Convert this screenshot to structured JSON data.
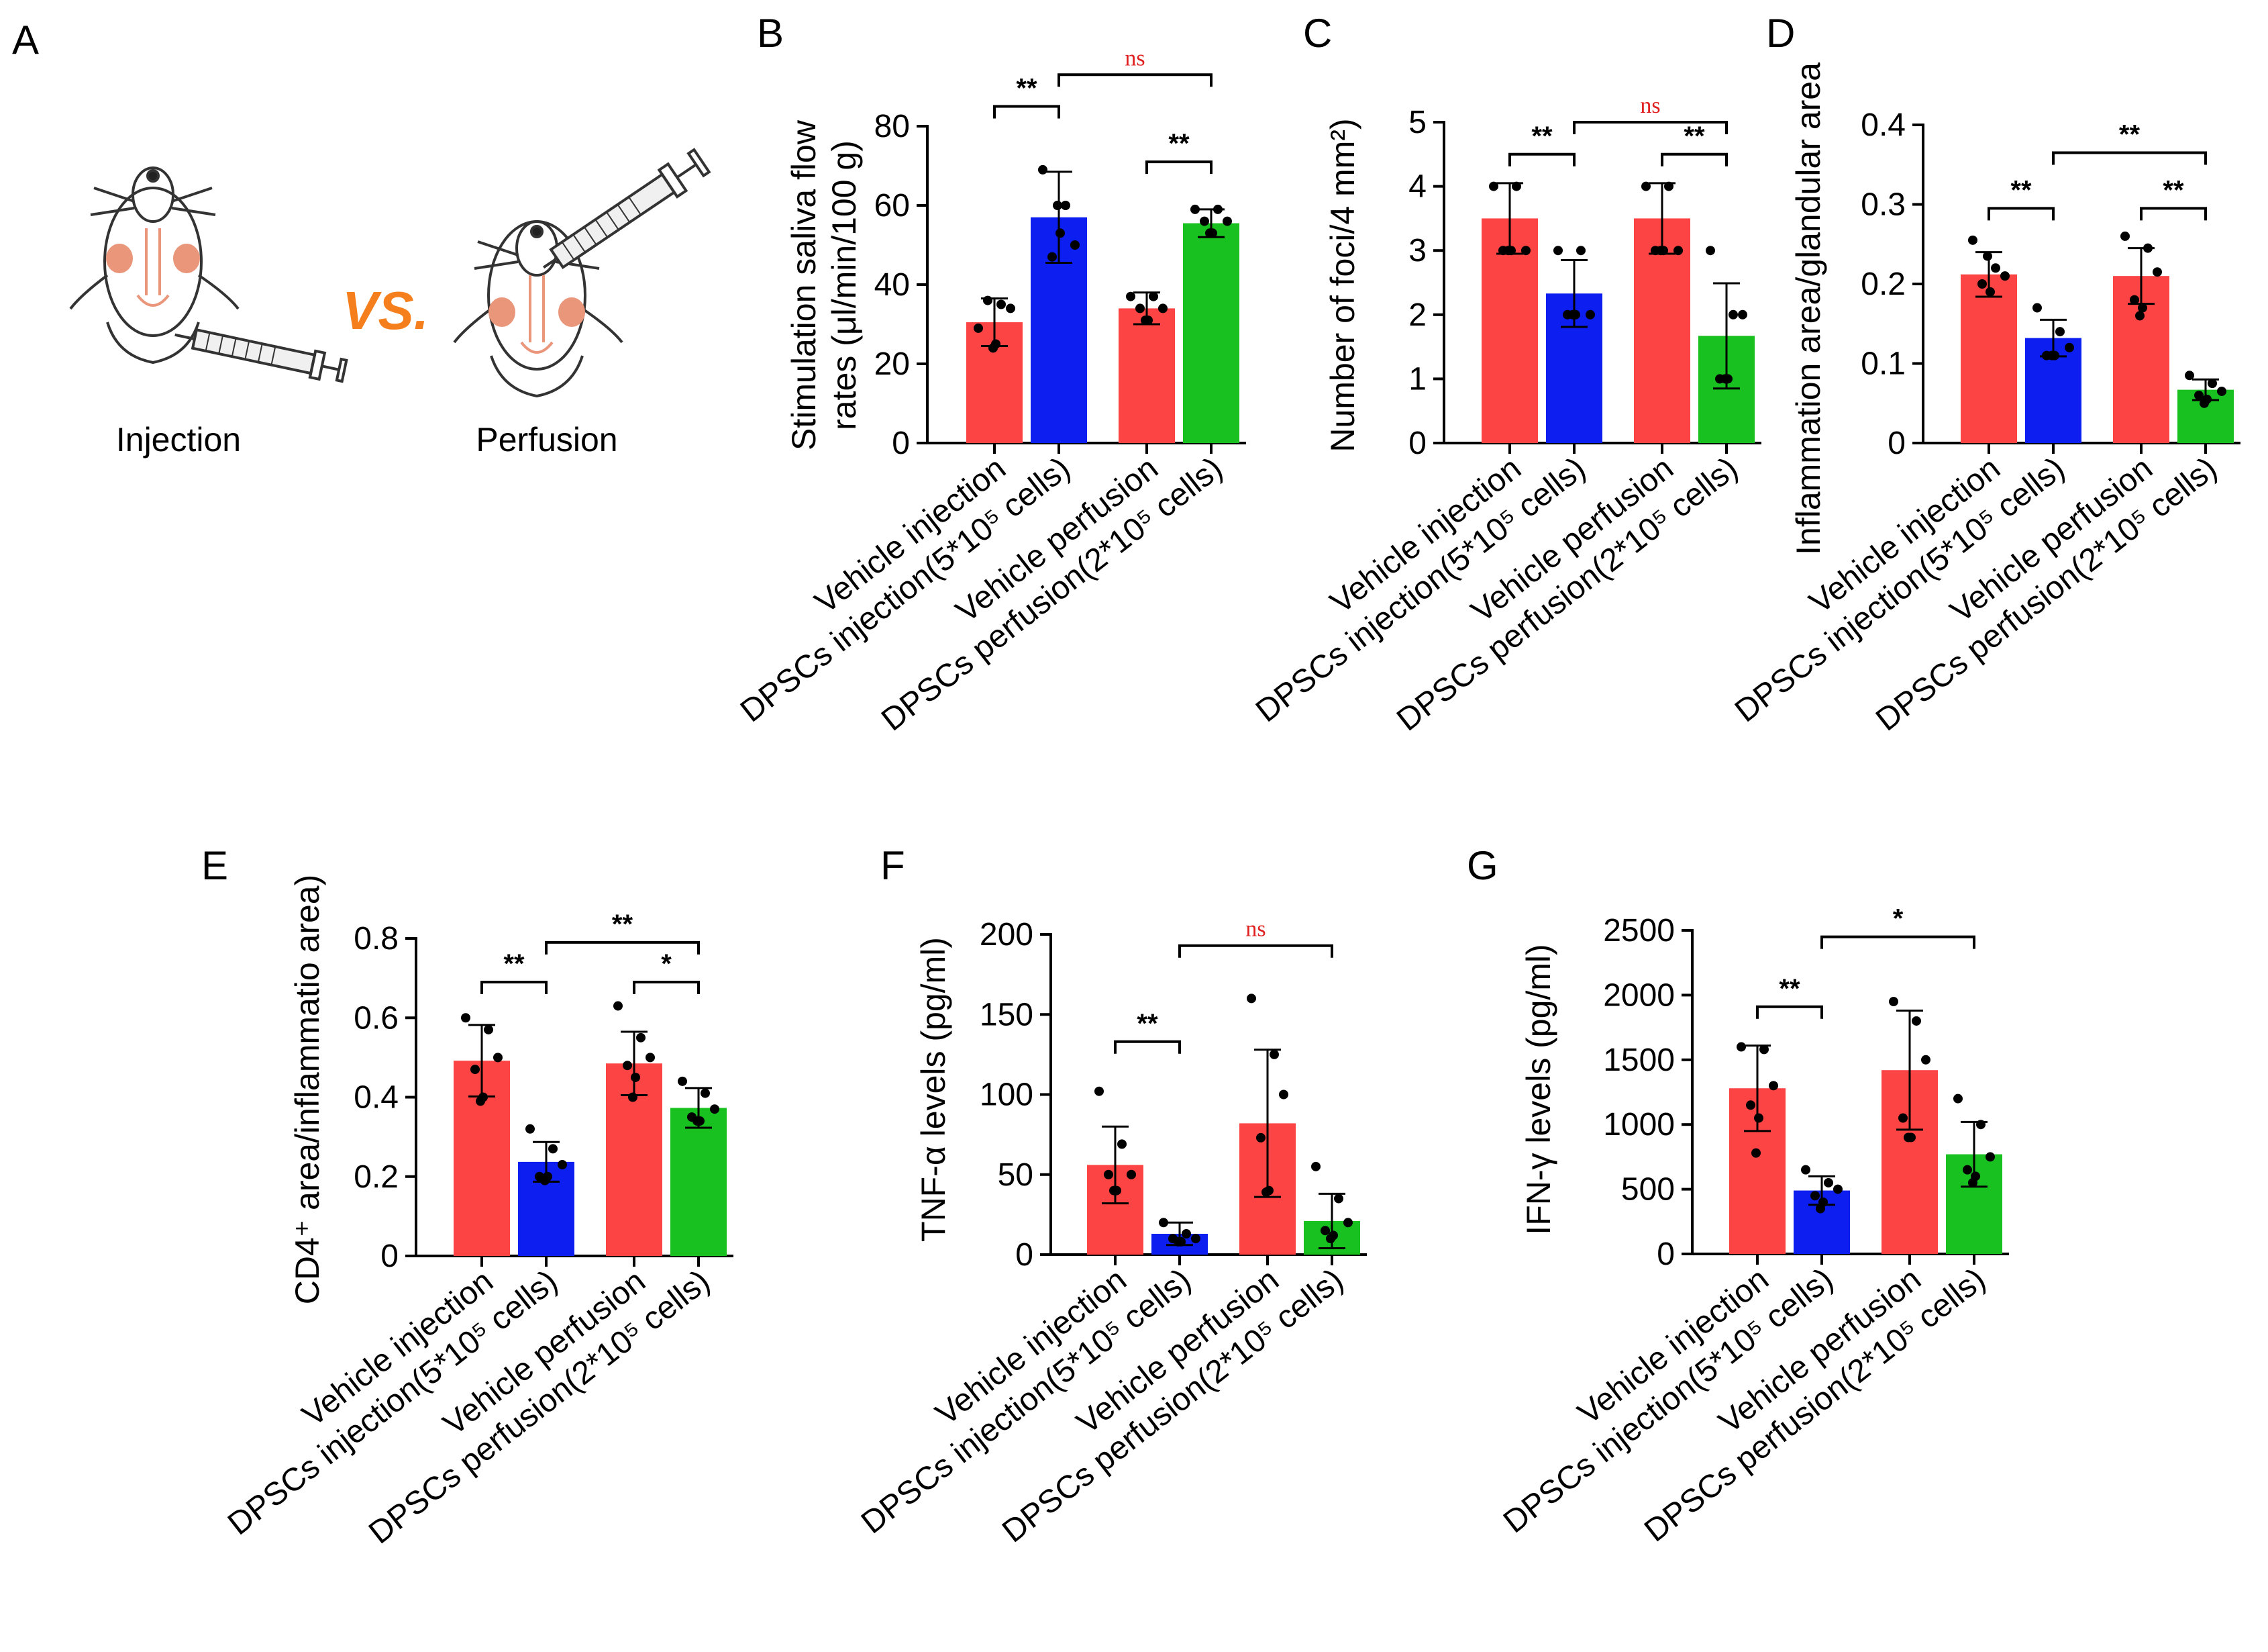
{
  "panel_a": {
    "letter": "A",
    "left_label": "Injection",
    "right_label": "Perfusion",
    "vs_text": "VS."
  },
  "colors": {
    "vehicle": "#fc4445",
    "dpsc_injection": "#0c1ef0",
    "dpsc_perfusion": "#18c020",
    "ns_text": "#e02020"
  },
  "categories": [
    "Vehicle injection",
    "DPSCs injection(5*10⁵ cells)",
    "Vehicle perfusion",
    "DPSCs perfusion(2*10⁵ cells)"
  ],
  "chart_data": [
    {
      "letter": "B",
      "type": "bar",
      "ylabel_lines": [
        "Stimulation saliva flow",
        "rates (μl/min/100 g)"
      ],
      "ylim": [
        0,
        80
      ],
      "yticks": [
        0,
        20,
        40,
        60,
        80
      ],
      "ytick_labels": [
        "0",
        "20",
        "40",
        "60",
        "80"
      ],
      "values": [
        30.5,
        57,
        34,
        55.5
      ],
      "errors": [
        6,
        11.5,
        4,
        3.5
      ],
      "points": [
        [
          29,
          35,
          34,
          36,
          25,
          24
        ],
        [
          69,
          60,
          50,
          47,
          53,
          60
        ],
        [
          37,
          37,
          34,
          34,
          31,
          31
        ],
        [
          59,
          59,
          56,
          56,
          53,
          53
        ]
      ],
      "sigs": [
        {
          "from": 0,
          "to": 1,
          "text": "**",
          "y": 85
        },
        {
          "from": 2,
          "to": 3,
          "text": "**",
          "y": 71
        },
        {
          "from": 1,
          "to": 3,
          "text": "ns",
          "y": 93
        }
      ]
    },
    {
      "letter": "C",
      "type": "bar",
      "ylabel_lines": [
        "Number of foci/4 mm²)"
      ],
      "ylim": [
        0,
        5
      ],
      "yticks": [
        0,
        1,
        2,
        3,
        4,
        5
      ],
      "ytick_labels": [
        "0",
        "1",
        "2",
        "3",
        "4",
        "5"
      ],
      "values": [
        3.5,
        2.33,
        3.5,
        1.67
      ],
      "errors": [
        0.55,
        0.52,
        0.55,
        0.82
      ],
      "points": [
        [
          4,
          4,
          3,
          3,
          3,
          3
        ],
        [
          3,
          3,
          2,
          2,
          2,
          2
        ],
        [
          4,
          4,
          3,
          3,
          3,
          3
        ],
        [
          3,
          2,
          2,
          1,
          1,
          1
        ]
      ],
      "sigs": [
        {
          "from": 0,
          "to": 1,
          "text": "**",
          "y": 4.5
        },
        {
          "from": 2,
          "to": 3,
          "text": "**",
          "y": 4.5
        },
        {
          "from": 1,
          "to": 3,
          "text": "ns",
          "y": 5.0
        }
      ]
    },
    {
      "letter": "D",
      "type": "bar",
      "ylabel_lines": [
        "Inflammation area/glandular area"
      ],
      "ylim": [
        0,
        0.4
      ],
      "yticks": [
        0,
        0.1,
        0.2,
        0.3,
        0.4
      ],
      "ytick_labels": [
        "0",
        "0.1",
        "0.2",
        "0.3",
        "0.4"
      ],
      "values": [
        0.212,
        0.132,
        0.21,
        0.067
      ],
      "errors": [
        0.028,
        0.023,
        0.035,
        0.013
      ],
      "points": [
        [
          0.255,
          0.22,
          0.21,
          0.2,
          0.19,
          0.235
        ],
        [
          0.17,
          0.14,
          0.12,
          0.11,
          0.11,
          0.11
        ],
        [
          0.26,
          0.245,
          0.215,
          0.18,
          0.17,
          0.16
        ],
        [
          0.085,
          0.075,
          0.065,
          0.06,
          0.055,
          0.05
        ]
      ],
      "sigs": [
        {
          "from": 0,
          "to": 1,
          "text": "**",
          "y": 0.295
        },
        {
          "from": 2,
          "to": 3,
          "text": "**",
          "y": 0.295
        },
        {
          "from": 1,
          "to": 3,
          "text": "**",
          "y": 0.365
        }
      ]
    },
    {
      "letter": "E",
      "type": "bar",
      "ylabel_lines": [
        "CD4⁺ area/inflammatio area)"
      ],
      "ylim": [
        0,
        0.8
      ],
      "yticks": [
        0,
        0.2,
        0.4,
        0.6,
        0.8
      ],
      "ytick_labels": [
        "0",
        "0.2",
        "0.4",
        "0.6",
        "0.8"
      ],
      "values": [
        0.492,
        0.237,
        0.485,
        0.373
      ],
      "errors": [
        0.09,
        0.05,
        0.08,
        0.05
      ],
      "points": [
        [
          0.6,
          0.57,
          0.5,
          0.47,
          0.4,
          0.39
        ],
        [
          0.32,
          0.27,
          0.23,
          0.2,
          0.2,
          0.19
        ],
        [
          0.63,
          0.55,
          0.5,
          0.48,
          0.45,
          0.4
        ],
        [
          0.44,
          0.41,
          0.37,
          0.35,
          0.34,
          0.34
        ]
      ],
      "sigs": [
        {
          "from": 0,
          "to": 1,
          "text": "**",
          "y": 0.69
        },
        {
          "from": 2,
          "to": 3,
          "text": "*",
          "y": 0.69
        },
        {
          "from": 1,
          "to": 3,
          "text": "**",
          "y": 0.79
        }
      ]
    },
    {
      "letter": "F",
      "type": "bar",
      "ylabel_lines": [
        "TNF-α levels (pg/ml)"
      ],
      "ylim": [
        0,
        200
      ],
      "yticks": [
        0,
        50,
        100,
        150,
        200
      ],
      "ytick_labels": [
        "0",
        "50",
        "100",
        "150",
        "200"
      ],
      "values": [
        56,
        13,
        82,
        21
      ],
      "errors": [
        24,
        7,
        46,
        17
      ],
      "points": [
        [
          102,
          69,
          50,
          50,
          40,
          40
        ],
        [
          20,
          13,
          10,
          10,
          8,
          8
        ],
        [
          160,
          125,
          100,
          73,
          40,
          39
        ],
        [
          55,
          35,
          20,
          15,
          12,
          10
        ]
      ],
      "sigs": [
        {
          "from": 0,
          "to": 1,
          "text": "**",
          "y": 133
        },
        {
          "from": 1,
          "to": 3,
          "text": "ns",
          "y": 193
        }
      ]
    },
    {
      "letter": "G",
      "type": "bar",
      "ylabel_lines": [
        "IFN-γ levels (pg/ml)"
      ],
      "ylim": [
        0,
        2500
      ],
      "yticks": [
        0,
        500,
        1000,
        1500,
        2000,
        2500
      ],
      "ytick_labels": [
        "0",
        "500",
        "1000",
        "1500",
        "2000",
        "2500"
      ],
      "values": [
        1280,
        490,
        1420,
        770
      ],
      "errors": [
        330,
        110,
        460,
        250
      ],
      "points": [
        [
          1600,
          1580,
          1300,
          1150,
          1050,
          780
        ],
        [
          650,
          550,
          500,
          450,
          400,
          350
        ],
        [
          1950,
          1800,
          1500,
          1050,
          900,
          900
        ],
        [
          1200,
          1000,
          750,
          650,
          600,
          550
        ]
      ],
      "sigs": [
        {
          "from": 0,
          "to": 1,
          "text": "**",
          "y": 1910
        },
        {
          "from": 1,
          "to": 3,
          "text": "*",
          "y": 2450
        }
      ]
    }
  ]
}
